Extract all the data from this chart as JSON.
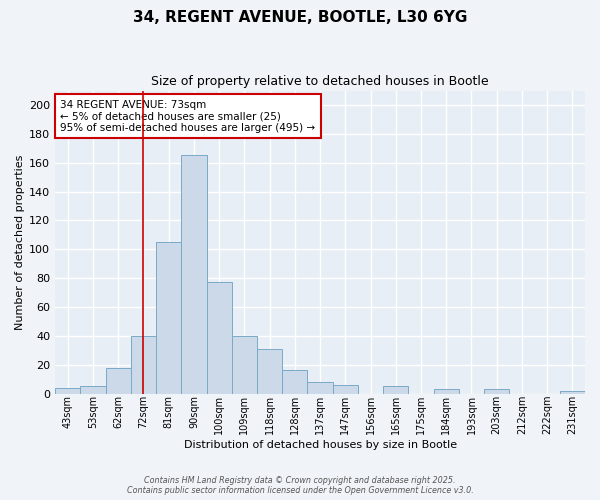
{
  "title": "34, REGENT AVENUE, BOOTLE, L30 6YG",
  "subtitle": "Size of property relative to detached houses in Bootle",
  "xlabel": "Distribution of detached houses by size in Bootle",
  "ylabel": "Number of detached properties",
  "bin_labels": [
    "43sqm",
    "53sqm",
    "62sqm",
    "72sqm",
    "81sqm",
    "90sqm",
    "100sqm",
    "109sqm",
    "118sqm",
    "128sqm",
    "137sqm",
    "147sqm",
    "156sqm",
    "165sqm",
    "175sqm",
    "184sqm",
    "193sqm",
    "203sqm",
    "212sqm",
    "222sqm",
    "231sqm"
  ],
  "bin_values": [
    4,
    5,
    18,
    40,
    105,
    165,
    77,
    40,
    31,
    16,
    8,
    6,
    0,
    5,
    0,
    3,
    0,
    3,
    0,
    0,
    2
  ],
  "bar_color": "#ccd9e8",
  "bar_edge_color": "#7aaac8",
  "vline_x_index": 3,
  "vline_color": "#cc0000",
  "annotation_line1": "34 REGENT AVENUE: 73sqm",
  "annotation_line2": "← 5% of detached houses are smaller (25)",
  "annotation_line3": "95% of semi-detached houses are larger (495) →",
  "annotation_box_facecolor": "#ffffff",
  "annotation_box_edgecolor": "#cc0000",
  "ylim": [
    0,
    210
  ],
  "yticks": [
    0,
    20,
    40,
    60,
    80,
    100,
    120,
    140,
    160,
    180,
    200
  ],
  "plot_bg_color": "#e8eef5",
  "fig_bg_color": "#f0f4f8",
  "grid_color": "#ffffff",
  "footer_line1": "Contains HM Land Registry data © Crown copyright and database right 2025.",
  "footer_line2": "Contains public sector information licensed under the Open Government Licence v3.0."
}
